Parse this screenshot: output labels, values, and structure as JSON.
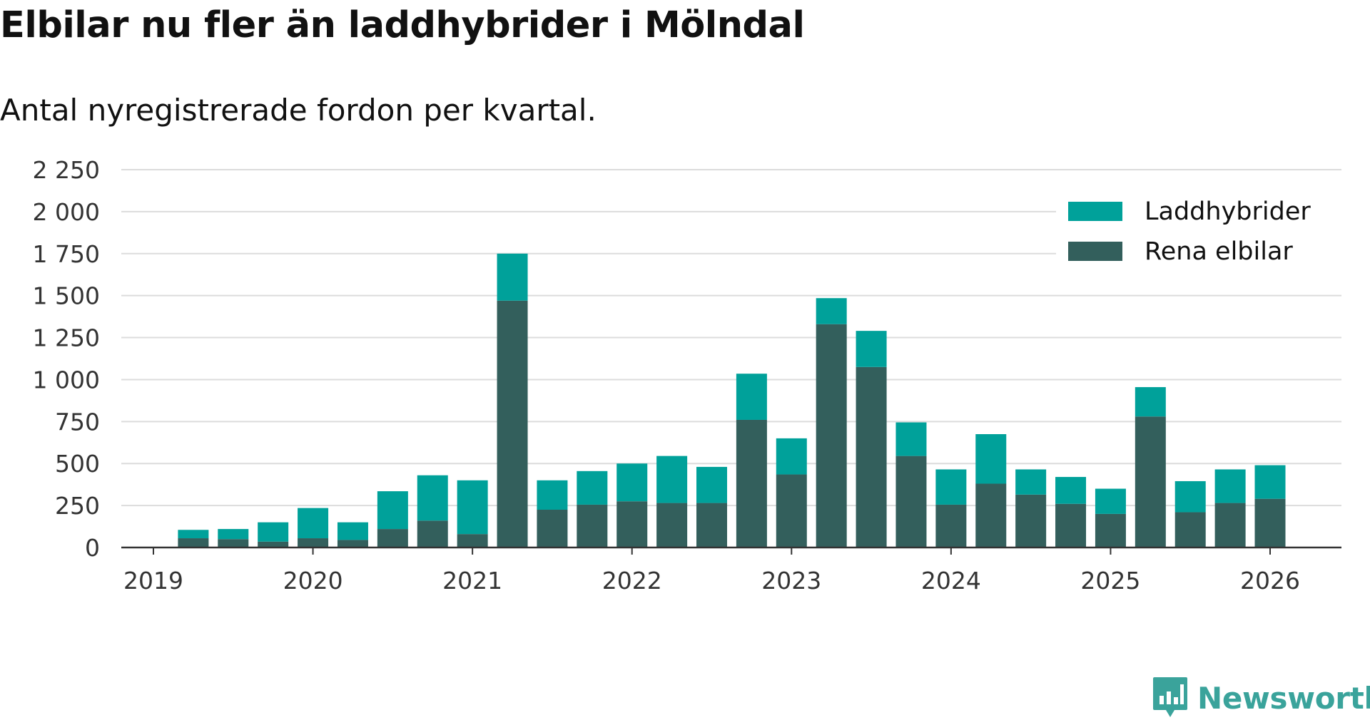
{
  "header": {
    "title": "Elbilar nu fler än laddhybrider i Mölndal",
    "subtitle": "Antal nyregistrerade fordon per kvartal."
  },
  "brand": {
    "name": "Newsworthy",
    "color": "#3aa39b"
  },
  "chart_data": {
    "type": "bar",
    "stacked": true,
    "title": "Elbilar nu fler än laddhybrider i Mölndal",
    "subtitle": "Antal nyregistrerade fordon per kvartal.",
    "xlabel": "",
    "ylabel": "",
    "ylim": [
      0,
      2250
    ],
    "yticks": [
      0,
      250,
      500,
      750,
      1000,
      1250,
      1500,
      1750,
      2000,
      2250
    ],
    "ytick_labels": [
      "0",
      "250",
      "500",
      "750",
      "1 000",
      "1 250",
      "1 500",
      "1 750",
      "2 000",
      "2 250"
    ],
    "xlim": [
      2019.0,
      2026.5
    ],
    "xticks": [
      2019,
      2020,
      2021,
      2022,
      2023,
      2024,
      2025,
      2026
    ],
    "xtick_labels": [
      "2019",
      "2020",
      "2021",
      "2022",
      "2023",
      "2024",
      "2025",
      "2026"
    ],
    "grid": true,
    "legend_position": "top-right",
    "x": [
      2019.25,
      2019.5,
      2019.75,
      2020.0,
      2020.25,
      2020.5,
      2020.75,
      2021.0,
      2021.25,
      2021.5,
      2021.75,
      2022.0,
      2022.25,
      2022.5,
      2022.75,
      2023.0,
      2023.25,
      2023.5,
      2023.75,
      2024.0,
      2024.25,
      2024.5,
      2024.75,
      2025.0,
      2025.25,
      2025.5,
      2025.75,
      2026.0
    ],
    "series": [
      {
        "name": "Rena elbilar",
        "color": "#335f5c",
        "values": [
          55,
          50,
          35,
          55,
          45,
          110,
          160,
          80,
          1470,
          225,
          255,
          275,
          265,
          265,
          760,
          435,
          1330,
          1075,
          545,
          255,
          380,
          315,
          260,
          200,
          780,
          210,
          265,
          290
        ]
      },
      {
        "name": "Laddhybrider",
        "color": "#00a19a",
        "values": [
          50,
          60,
          115,
          180,
          105,
          225,
          270,
          320,
          280,
          175,
          200,
          225,
          280,
          215,
          275,
          215,
          155,
          215,
          200,
          210,
          295,
          150,
          160,
          150,
          175,
          185,
          200,
          200
        ]
      }
    ]
  }
}
